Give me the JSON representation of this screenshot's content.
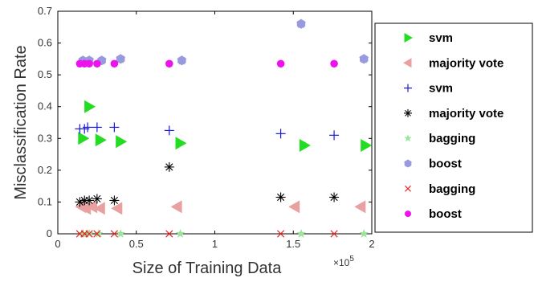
{
  "chart_data": {
    "type": "scatter",
    "xlabel": "Size of Training Data",
    "ylabel": "Misclassification Rate",
    "x_exponent_label": "×10",
    "x_exponent_power": "5",
    "xlim": [
      0,
      200000
    ],
    "ylim": [
      0,
      0.7
    ],
    "x_ticks": [
      0,
      50000,
      100000,
      150000,
      200000
    ],
    "x_tick_labels": [
      "0",
      "0.5",
      "1",
      "1.5",
      "2"
    ],
    "y_ticks": [
      0,
      0.1,
      0.2,
      0.3,
      0.4,
      0.5,
      0.6,
      0.7
    ],
    "y_tick_labels": [
      "0",
      "0.1",
      "0.2",
      "0.3",
      "0.4",
      "0.5",
      "0.6",
      "0.7"
    ],
    "grid": false,
    "legend_position": "right",
    "series": [
      {
        "name": "svm",
        "marker": "triangle-right",
        "color": "#22dd22",
        "points": [
          [
            16000,
            0.3
          ],
          [
            20000,
            0.4
          ],
          [
            27000,
            0.295
          ],
          [
            40000,
            0.29
          ],
          [
            78000,
            0.285
          ],
          [
            157000,
            0.278
          ],
          [
            196000,
            0.278
          ]
        ]
      },
      {
        "name": "majority vote",
        "marker": "triangle-left",
        "color": "#e8a0a0",
        "points": [
          [
            15000,
            0.085
          ],
          [
            18000,
            0.08
          ],
          [
            22000,
            0.085
          ],
          [
            27000,
            0.08
          ],
          [
            38000,
            0.08
          ],
          [
            76000,
            0.085
          ],
          [
            151000,
            0.085
          ],
          [
            193000,
            0.085
          ]
        ]
      },
      {
        "name": "svm",
        "marker": "plus",
        "color": "#1a1adb",
        "points": [
          [
            14000,
            0.33
          ],
          [
            17000,
            0.33
          ],
          [
            19000,
            0.335
          ],
          [
            25000,
            0.335
          ],
          [
            36000,
            0.335
          ],
          [
            71000,
            0.325
          ],
          [
            142000,
            0.315
          ],
          [
            176000,
            0.31
          ]
        ]
      },
      {
        "name": "majority vote",
        "marker": "asterisk",
        "color": "#000000",
        "points": [
          [
            14000,
            0.1
          ],
          [
            17000,
            0.105
          ],
          [
            20000,
            0.105
          ],
          [
            25000,
            0.11
          ],
          [
            36000,
            0.105
          ],
          [
            71000,
            0.21
          ],
          [
            142000,
            0.115
          ],
          [
            176000,
            0.115
          ]
        ]
      },
      {
        "name": "bagging",
        "marker": "star",
        "color": "#99e699",
        "points": [
          [
            16000,
            0.0
          ],
          [
            20000,
            0.0
          ],
          [
            26000,
            0.0
          ],
          [
            40000,
            0.0
          ],
          [
            78000,
            0.0
          ],
          [
            155000,
            0.0
          ],
          [
            195000,
            0.0
          ]
        ]
      },
      {
        "name": "boost",
        "marker": "star",
        "color": "#9999dd",
        "points": [
          [
            16000,
            0.545
          ],
          [
            20000,
            0.545
          ],
          [
            28000,
            0.545
          ],
          [
            40000,
            0.55
          ],
          [
            79000,
            0.545
          ],
          [
            155000,
            0.66
          ],
          [
            195000,
            0.55
          ]
        ]
      },
      {
        "name": "bagging",
        "marker": "x",
        "color": "#ee2222",
        "points": [
          [
            14000,
            0.0
          ],
          [
            17000,
            0.0
          ],
          [
            20000,
            0.0
          ],
          [
            25000,
            0.0
          ],
          [
            36000,
            0.0
          ],
          [
            71000,
            0.0
          ],
          [
            142000,
            0.0
          ],
          [
            176000,
            0.0
          ]
        ]
      },
      {
        "name": "boost",
        "marker": "circle",
        "color": "#ee11ee",
        "points": [
          [
            14000,
            0.535
          ],
          [
            17000,
            0.535
          ],
          [
            20000,
            0.535
          ],
          [
            25000,
            0.535
          ],
          [
            36000,
            0.535
          ],
          [
            71000,
            0.535
          ],
          [
            142000,
            0.535
          ],
          [
            176000,
            0.535
          ]
        ]
      }
    ]
  }
}
